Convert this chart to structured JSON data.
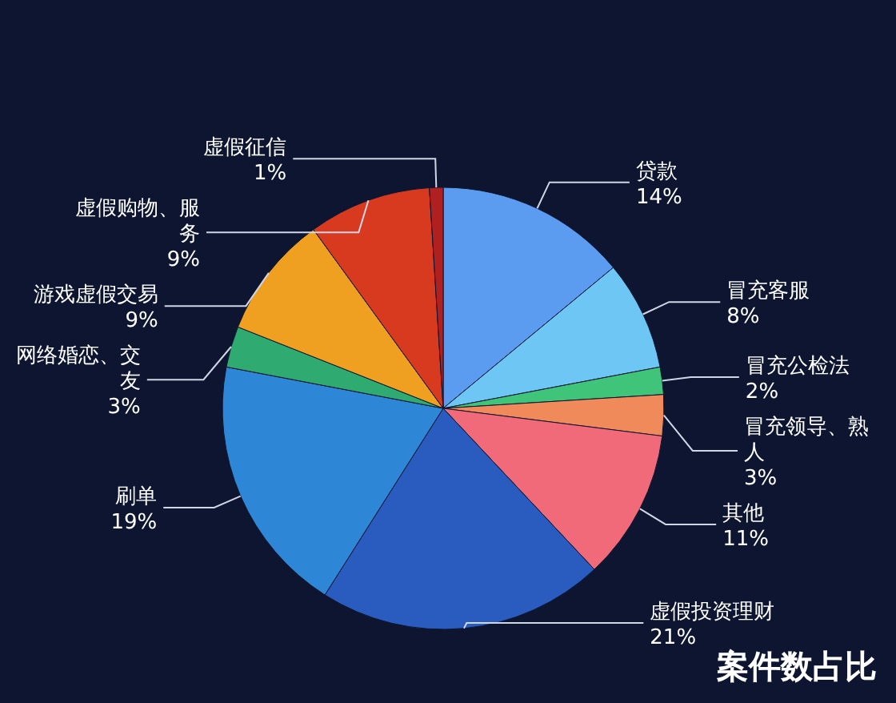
{
  "chart_data": {
    "type": "pie",
    "title": "案件数占比",
    "categories": [
      "贷款",
      "冒充客服",
      "冒充公检法",
      "冒充领导、熟人",
      "其他",
      "虚假投资理财",
      "刷单",
      "网络婚恋、交友",
      "游戏虚假交易",
      "虚假购物、服务",
      "虚假征信"
    ],
    "values": [
      14,
      8,
      2,
      3,
      11,
      21,
      19,
      3,
      9,
      9,
      1
    ],
    "colors": [
      "#5b9bf0",
      "#6ec6f5",
      "#3fc47a",
      "#f08a5a",
      "#f06a7a",
      "#2a5cc0",
      "#2e86d6",
      "#2faa70",
      "#f0a020",
      "#d83a20",
      "#b02020"
    ],
    "value_labels": [
      "14%",
      "8%",
      "2%",
      "3%",
      "11%",
      "21%",
      "19%",
      "3%",
      "9%",
      "9%",
      "1%"
    ]
  }
}
